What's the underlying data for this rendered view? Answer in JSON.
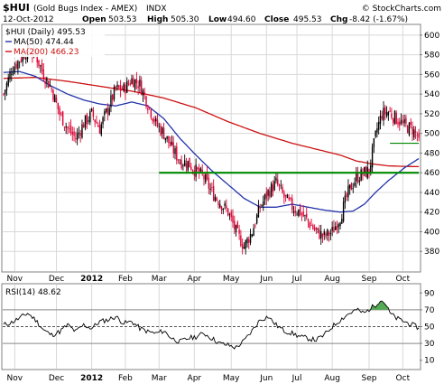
{
  "header": {
    "symbol": "$HUI",
    "name": "(Gold Bugs Index - AMEX)",
    "exchange": "INDX",
    "brand": "© StockCharts.com",
    "date": "12-Oct-2012",
    "open_label": "Open",
    "open": "503.53",
    "high_label": "High",
    "high": "505.30",
    "low_label": "Low",
    "low": "494.60",
    "close_label": "Close",
    "close": "495.53",
    "chg_label": "Chg",
    "chg": "-8.42 (-1.67%)"
  },
  "legend": {
    "price": "$HUI (Daily) 495.53",
    "ma50": "MA(50) 474.44",
    "ma200": "MA(200) 466.23",
    "rsi": "RSI(14) 48.62"
  },
  "colors": {
    "up": "#000000",
    "down": "#dd0033",
    "ma50": "#2233aa",
    "ma200": "#cc1111",
    "support": "#008800",
    "rsi_fill": "#55aa55",
    "grid": "#d8d8d8"
  },
  "chart_data": [
    {
      "type": "candlestick",
      "title": "$HUI (Gold Bugs Index - AMEX) INDX",
      "ylim": [
        360,
        610
      ],
      "yticks": [
        380,
        400,
        420,
        440,
        460,
        480,
        500,
        520,
        540,
        560,
        580,
        600
      ],
      "x_months": [
        "Nov",
        "Dec",
        "2012",
        "Feb",
        "Mar",
        "Apr",
        "May",
        "Jun",
        "Jul",
        "Aug",
        "Sep",
        "Oct"
      ],
      "x_month_index": [
        7,
        33,
        55,
        76,
        97,
        119,
        142,
        164,
        183,
        205,
        228,
        249
      ],
      "n_bars": 260,
      "price_keypoints": [
        [
          0,
          540
        ],
        [
          5,
          565
        ],
        [
          10,
          575
        ],
        [
          15,
          585
        ],
        [
          20,
          580
        ],
        [
          25,
          560
        ],
        [
          30,
          545
        ],
        [
          35,
          520
        ],
        [
          40,
          505
        ],
        [
          45,
          495
        ],
        [
          50,
          510
        ],
        [
          55,
          520
        ],
        [
          60,
          505
        ],
        [
          65,
          525
        ],
        [
          70,
          545
        ],
        [
          75,
          545
        ],
        [
          80,
          555
        ],
        [
          85,
          550
        ],
        [
          90,
          530
        ],
        [
          95,
          510
        ],
        [
          100,
          500
        ],
        [
          105,
          485
        ],
        [
          110,
          472
        ],
        [
          115,
          470
        ],
        [
          120,
          462
        ],
        [
          125,
          455
        ],
        [
          130,
          440
        ],
        [
          135,
          430
        ],
        [
          140,
          420
        ],
        [
          145,
          400
        ],
        [
          150,
          385
        ],
        [
          155,
          400
        ],
        [
          160,
          425
        ],
        [
          165,
          440
        ],
        [
          170,
          450
        ],
        [
          175,
          435
        ],
        [
          180,
          425
        ],
        [
          185,
          420
        ],
        [
          190,
          410
        ],
        [
          195,
          400
        ],
        [
          200,
          395
        ],
        [
          205,
          400
        ],
        [
          210,
          415
        ],
        [
          215,
          440
        ],
        [
          220,
          455
        ],
        [
          225,
          460
        ],
        [
          228,
          462
        ],
        [
          230,
          480
        ],
        [
          233,
          505
        ],
        [
          236,
          520
        ],
        [
          240,
          522
        ],
        [
          245,
          515
        ],
        [
          250,
          508
        ],
        [
          255,
          504
        ],
        [
          259,
          495.53
        ]
      ],
      "ma50_keypoints": [
        [
          0,
          562
        ],
        [
          10,
          563
        ],
        [
          20,
          558
        ],
        [
          30,
          548
        ],
        [
          40,
          540
        ],
        [
          50,
          534
        ],
        [
          60,
          530
        ],
        [
          70,
          528
        ],
        [
          80,
          532
        ],
        [
          90,
          528
        ],
        [
          100,
          515
        ],
        [
          110,
          495
        ],
        [
          120,
          478
        ],
        [
          130,
          462
        ],
        [
          140,
          448
        ],
        [
          150,
          434
        ],
        [
          160,
          425
        ],
        [
          170,
          425
        ],
        [
          180,
          428
        ],
        [
          190,
          425
        ],
        [
          200,
          422
        ],
        [
          210,
          420
        ],
        [
          218,
          421
        ],
        [
          225,
          428
        ],
        [
          232,
          440
        ],
        [
          240,
          452
        ],
        [
          250,
          465
        ],
        [
          259,
          474.44
        ]
      ],
      "ma200_keypoints": [
        [
          0,
          556
        ],
        [
          20,
          557
        ],
        [
          40,
          553
        ],
        [
          60,
          548
        ],
        [
          80,
          543
        ],
        [
          100,
          536
        ],
        [
          120,
          526
        ],
        [
          140,
          512
        ],
        [
          160,
          500
        ],
        [
          180,
          490
        ],
        [
          200,
          482
        ],
        [
          210,
          478
        ],
        [
          220,
          472
        ],
        [
          230,
          469
        ],
        [
          240,
          467
        ],
        [
          250,
          466.5
        ],
        [
          259,
          466.23
        ]
      ],
      "support_line": {
        "value": 460,
        "from_bar": 97,
        "to_bar": 259
      },
      "short_line": {
        "value": 490,
        "from_bar": 241,
        "to_bar": 259
      }
    },
    {
      "type": "line",
      "title": "RSI(14)",
      "ylim": [
        0,
        100
      ],
      "yticks": [
        10,
        30,
        50,
        70,
        90
      ],
      "reference_lines": [
        30,
        50,
        70
      ],
      "rsi_keypoints": [
        [
          0,
          52
        ],
        [
          5,
          55
        ],
        [
          10,
          60
        ],
        [
          15,
          66
        ],
        [
          20,
          58
        ],
        [
          25,
          46
        ],
        [
          30,
          40
        ],
        [
          35,
          44
        ],
        [
          40,
          52
        ],
        [
          45,
          44
        ],
        [
          50,
          52
        ],
        [
          55,
          48
        ],
        [
          60,
          56
        ],
        [
          65,
          58
        ],
        [
          70,
          62
        ],
        [
          75,
          54
        ],
        [
          80,
          56
        ],
        [
          85,
          48
        ],
        [
          90,
          44
        ],
        [
          95,
          42
        ],
        [
          100,
          45
        ],
        [
          105,
          36
        ],
        [
          110,
          32
        ],
        [
          115,
          36
        ],
        [
          120,
          38
        ],
        [
          125,
          42
        ],
        [
          130,
          36
        ],
        [
          135,
          30
        ],
        [
          140,
          28
        ],
        [
          145,
          25
        ],
        [
          150,
          33
        ],
        [
          155,
          45
        ],
        [
          160,
          58
        ],
        [
          165,
          62
        ],
        [
          170,
          52
        ],
        [
          175,
          45
        ],
        [
          180,
          42
        ],
        [
          185,
          38
        ],
        [
          190,
          36
        ],
        [
          195,
          34
        ],
        [
          200,
          40
        ],
        [
          205,
          50
        ],
        [
          210,
          58
        ],
        [
          215,
          65
        ],
        [
          220,
          70
        ],
        [
          225,
          66
        ],
        [
          229,
          72
        ],
        [
          232,
          76
        ],
        [
          235,
          82
        ],
        [
          238,
          78
        ],
        [
          241,
          66
        ],
        [
          245,
          60
        ],
        [
          250,
          56
        ],
        [
          255,
          52
        ],
        [
          259,
          48.62
        ]
      ]
    }
  ]
}
